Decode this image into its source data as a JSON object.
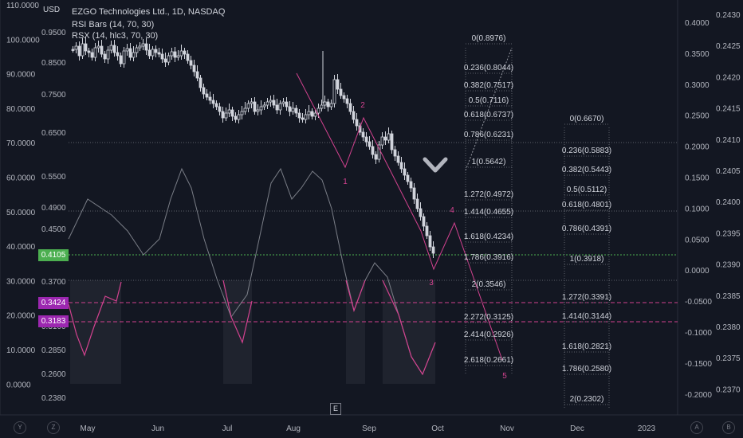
{
  "header": {
    "currency": "USD",
    "symbol_line": "EZGO Technologies Ltd., 1D, NASDAQ",
    "indicator_1": "RSI Bars (14, 70, 30)",
    "indicator_2": "RSX (14, hlc3, 70, 30)"
  },
  "axes": {
    "far_left": [
      "110.0000",
      "100.0000",
      "90.0000",
      "80.0000",
      "70.0000",
      "60.0000",
      "50.0000",
      "40.0000",
      "30.0000",
      "20.0000",
      "10.0000",
      "0.0000"
    ],
    "inner_left": [
      "0.9500",
      "0.8500",
      "0.7500",
      "0.6500",
      "0.5500",
      "0.4900",
      "0.4500",
      "0.3700",
      "0.3100",
      "0.2850",
      "0.2600",
      "0.2380"
    ],
    "right": [
      "0.4000",
      "0.3500",
      "0.3000",
      "0.2500",
      "0.2000",
      "0.1500",
      "0.1000",
      "0.0500",
      "0.0000",
      "-0.0500",
      "-0.1000",
      "-0.1500",
      "-0.2000"
    ],
    "far_right": [
      "0.2430",
      "0.2425",
      "0.2420",
      "0.2415",
      "0.2410",
      "0.2405",
      "0.2400",
      "0.2395",
      "0.2390",
      "0.2385",
      "0.2380",
      "0.2375",
      "0.2370"
    ],
    "time": [
      "May",
      "Jun",
      "Jul",
      "Aug",
      "Sep",
      "Oct",
      "Nov",
      "Dec",
      "2023"
    ]
  },
  "price_tags": [
    {
      "label": "0.4105",
      "color": "#4caf50"
    },
    {
      "label": "0.3424",
      "color": "#9c27b0"
    },
    {
      "label": "0.3183",
      "color": "#9c27b0"
    }
  ],
  "fib_a": [
    "0(0.8976)",
    "0.236(0.8044)",
    "0.382(0.7517)",
    "0.5(0.7116)",
    "0.618(0.6737)",
    "0.786(0.6231)",
    "1(0.5642)",
    "1.272(0.4972)",
    "1.414(0.4655)",
    "1.618(0.4234)",
    "1.786(0.3916)",
    "2(0.3546)",
    "2.272(0.3125)",
    "2.414(0.2926)",
    "2.618(0.2661)"
  ],
  "fib_b": [
    "0(0.6670)",
    "0.236(0.5883)",
    "0.382(0.5443)",
    "0.5(0.5112)",
    "0.618(0.4801)",
    "0.786(0.4391)",
    "1(0.3918)",
    "1.272(0.3391)",
    "1.414(0.3144)",
    "1.618(0.2821)",
    "1.786(0.2580)",
    "2(0.2302)"
  ],
  "wave_labels": [
    "1",
    "2",
    "3",
    "4",
    "5"
  ],
  "bottom_bar": {
    "left": [
      "Y",
      "Z"
    ],
    "right": [
      "A",
      "B"
    ],
    "event_marker": "E"
  },
  "colors": {
    "background": "#131722",
    "candles": "#d1d4dc",
    "wave": "#d2428f",
    "rsx": "#9598a1",
    "shade": "#2a2e39"
  }
}
